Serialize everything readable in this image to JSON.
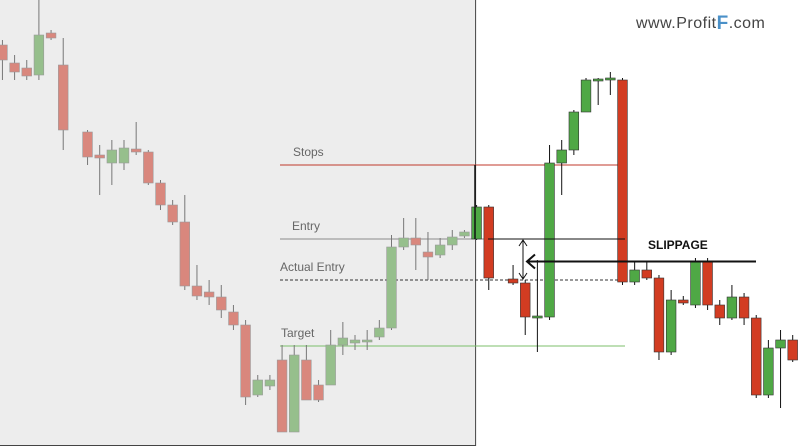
{
  "chart_data": {
    "type": "candlestick",
    "xlim": [
      -0.2,
      65.6
    ],
    "ylim": [
      0,
      446
    ],
    "series": [
      {
        "up_color": "#96bf8c",
        "down_color": "#d9877d",
        "wick_color": "#777777",
        "x": [
          0,
          1,
          2,
          3,
          4,
          5,
          7,
          8,
          9,
          10,
          11,
          12,
          13,
          14,
          15,
          16,
          17,
          18,
          19,
          20,
          21,
          22,
          23,
          24,
          25,
          26,
          27,
          28,
          29,
          30,
          31,
          32,
          33,
          34,
          35,
          36,
          37,
          38
        ],
        "open": [
          401,
          383,
          378,
          371,
          413,
          381,
          314,
          291,
          283,
          283,
          297,
          294,
          263,
          241,
          224,
          160,
          154,
          149,
          134,
          121,
          51,
          60,
          86,
          14,
          86,
          61,
          61,
          101,
          103,
          104,
          109,
          118,
          199,
          208,
          194,
          191,
          201,
          210
        ],
        "high": [
          406,
          391,
          386,
          446,
          416,
          408,
          316,
          301,
          306,
          306,
          324,
          296,
          266,
          246,
          251,
          181,
          166,
          161,
          141,
          126,
          71,
          71,
          101,
          101,
          101,
          66,
          116,
          124,
          111,
          116,
          126,
          211,
          228,
          228,
          214,
          208,
          216,
          216
        ],
        "low": [
          366,
          366,
          366,
          366,
          406,
          296,
          281,
          251,
          261,
          276,
          291,
          261,
          236,
          221,
          156,
          146,
          141,
          128,
          116,
          41,
          49,
          56,
          14,
          14,
          46,
          44,
          61,
          91,
          96,
          96,
          106,
          116,
          196,
          176,
          166,
          188,
          196,
          208
        ],
        "close": [
          386,
          374,
          370,
          411,
          408,
          316,
          289,
          288,
          296,
          298,
          294,
          263,
          241,
          224,
          160,
          150,
          149,
          136,
          121,
          49,
          66,
          66,
          14,
          91,
          46,
          46,
          101,
          108,
          106,
          106,
          118,
          199,
          208,
          201,
          189,
          201,
          209,
          214
        ]
      },
      {
        "up_color": "#4fa845",
        "down_color": "#d23c22",
        "wick_color": "#111111",
        "x": [
          39,
          40,
          42,
          43,
          44,
          45,
          46,
          47,
          48,
          49,
          50,
          51,
          52,
          53,
          54,
          55,
          56,
          57,
          58,
          59,
          60,
          61,
          62,
          63,
          64,
          65
        ],
        "open": [
          207,
          239,
          167,
          163,
          128,
          129,
          283,
          296,
          334,
          365,
          366,
          366,
          164,
          176,
          168,
          94,
          146,
          141,
          184,
          141,
          128,
          149,
          128,
          51,
          98,
          106
        ],
        "high": [
          241,
          241,
          181,
          166,
          186,
          301,
          306,
          336,
          368,
          368,
          374,
          368,
          184,
          184,
          171,
          156,
          150,
          188,
          188,
          146,
          161,
          153,
          131,
          106,
          116,
          111
        ],
        "low": [
          206,
          156,
          161,
          111,
          94,
          126,
          251,
          291,
          334,
          341,
          351,
          161,
          161,
          166,
          86,
          91,
          141,
          138,
          136,
          121,
          126,
          121,
          48,
          48,
          38,
          84
        ],
        "close": [
          239,
          168,
          163,
          129,
          130,
          283,
          296,
          334,
          366,
          367,
          368,
          164,
          176,
          168,
          94,
          146,
          143,
          184,
          141,
          128,
          149,
          128,
          51,
          98,
          106,
          86
        ]
      }
    ],
    "levels": [
      {
        "name": "Stops",
        "value": 281,
        "color": "#c0392b",
        "dashed": false
      },
      {
        "name": "Entry",
        "value": 207,
        "color": "#8a8a8a",
        "dashed": false
      },
      {
        "name": "Actual Entry",
        "value": 166,
        "color": "#333333",
        "dashed": true
      },
      {
        "name": "Target",
        "value": 100,
        "color": "#7cbf6b",
        "dashed": false
      }
    ],
    "annotation": "SLIPPAGE",
    "logo": {
      "prefix": "www.Profit",
      "mark": "F",
      "suffix": ".com"
    }
  }
}
